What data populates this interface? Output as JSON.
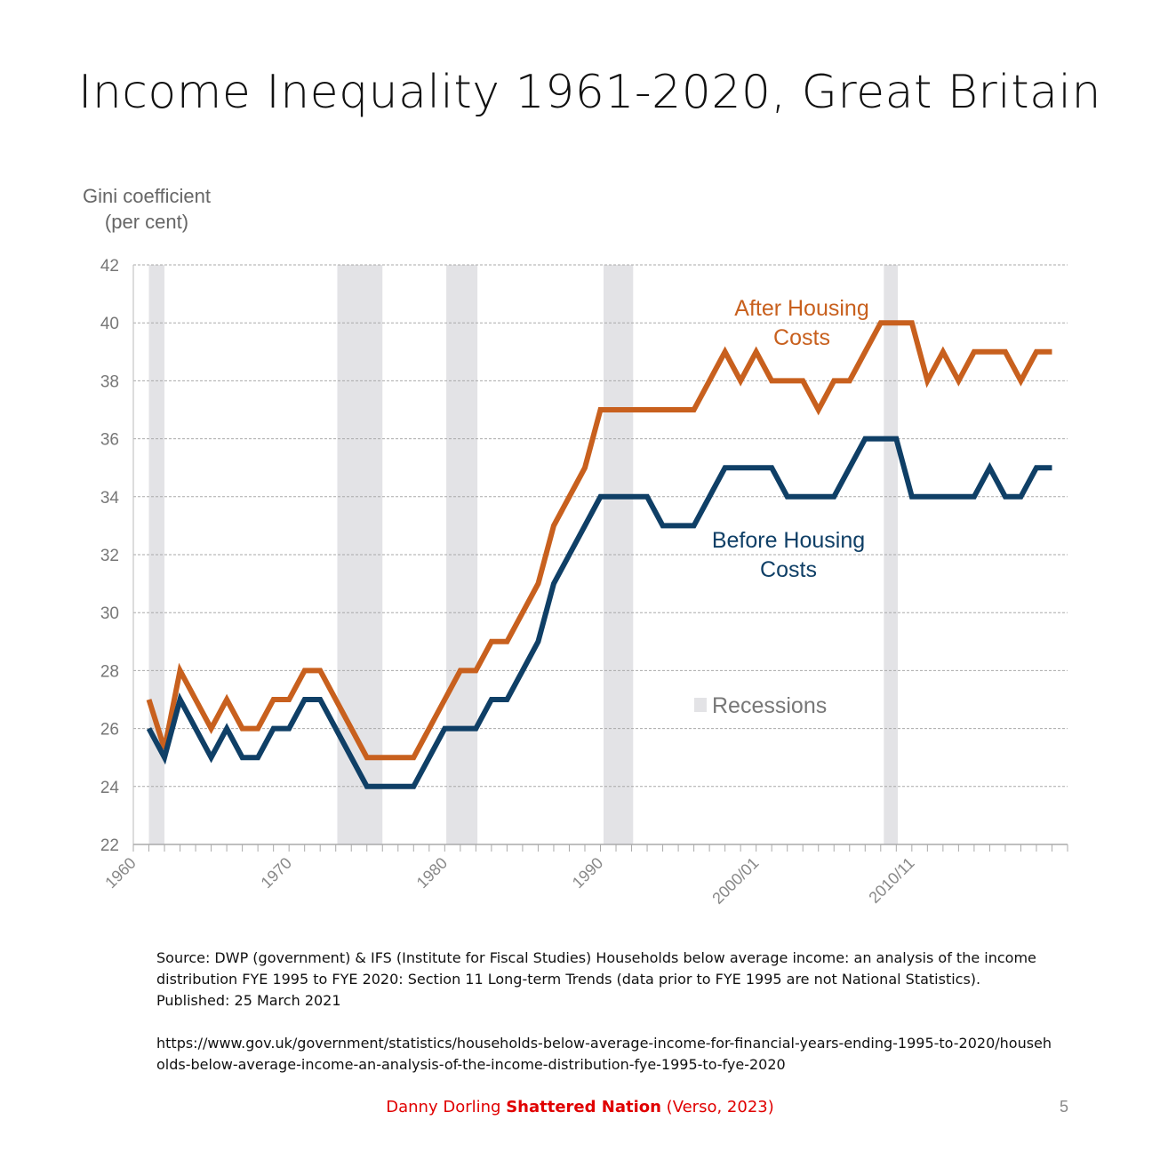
{
  "title": "Income Inequality 1961-2020, Great Britain",
  "chart_data": {
    "type": "line",
    "title": "Income Inequality 1961-2020, Great Britain",
    "ylabel": [
      "Gini coefficient",
      "(per cent)"
    ],
    "xlabel": "",
    "ylim": [
      22,
      42
    ],
    "xlim": [
      1960,
      2020
    ],
    "yticks": [
      22,
      24,
      26,
      28,
      30,
      32,
      34,
      36,
      38,
      40,
      42
    ],
    "xticks": [
      {
        "value": 1960,
        "label": "1960"
      },
      {
        "value": 1970,
        "label": "1970"
      },
      {
        "value": 1980,
        "label": "1980"
      },
      {
        "value": 1990,
        "label": "1990"
      },
      {
        "value": 2000,
        "label": "2000/01"
      },
      {
        "value": 2010,
        "label": "2010/11"
      }
    ],
    "grid": true,
    "x": [
      1961,
      1962,
      1963,
      1964,
      1965,
      1966,
      1967,
      1968,
      1969,
      1970,
      1971,
      1972,
      1973,
      1974,
      1975,
      1976,
      1977,
      1978,
      1979,
      1980,
      1981,
      1982,
      1983,
      1984,
      1985,
      1986,
      1987,
      1988,
      1989,
      1990,
      1991,
      1992,
      1993,
      1994,
      1995,
      1996,
      1997,
      1998,
      1999,
      2000,
      2001,
      2002,
      2003,
      2004,
      2005,
      2006,
      2007,
      2008,
      2009,
      2010,
      2011,
      2012,
      2013,
      2014,
      2015,
      2016,
      2017,
      2018,
      2019
    ],
    "series": [
      {
        "name": "After Housing Costs",
        "label_lines": [
          "After Housing",
          "Costs"
        ],
        "color": "#c8601e",
        "values": [
          27,
          25.3,
          28,
          27,
          26,
          27,
          26,
          26,
          27,
          27,
          28,
          28,
          27,
          26,
          25,
          25,
          25,
          25,
          26,
          27,
          28,
          28,
          29,
          29,
          30,
          31,
          33,
          34,
          35,
          37,
          37,
          37,
          37,
          37,
          37,
          37,
          38,
          39,
          38,
          39,
          38,
          38,
          38,
          37,
          38,
          38,
          39,
          40,
          40,
          40,
          38,
          39,
          38,
          39,
          39,
          39,
          38,
          39,
          39
        ]
      },
      {
        "name": "Before Housing Costs",
        "label_lines": [
          "Before Housing",
          "Costs"
        ],
        "color": "#0f3f66",
        "values": [
          26,
          25,
          27,
          26,
          25,
          26,
          25,
          25,
          26,
          26,
          27,
          27,
          26,
          25,
          24,
          24,
          24,
          24,
          25,
          26,
          26,
          26,
          27,
          27,
          28,
          29,
          31,
          32,
          33,
          34,
          34,
          34,
          34,
          33,
          33,
          33,
          34,
          35,
          35,
          35,
          35,
          34,
          34,
          34,
          34,
          35,
          36,
          36,
          36,
          34,
          34,
          34,
          34,
          34,
          35,
          34,
          34,
          35,
          35
        ]
      }
    ],
    "recessions": [
      [
        1961.0,
        1962.0
      ],
      [
        1973.1,
        1976.0
      ],
      [
        1980.1,
        1982.1
      ],
      [
        1990.2,
        1992.1
      ],
      [
        2008.2,
        2009.1
      ]
    ],
    "legend": {
      "label": "Recessions",
      "color": "#e3e3e6",
      "placement": "center-right"
    }
  },
  "source": {
    "text": "Source: DWP (government) & IFS (Institute for Fiscal Studies) Households below average income: an analysis of the income distribution FYE 1995 to FYE 2020: Section 11 Long-term Trends (data prior to FYE 1995 are not National Statistics). Published: 25 March 2021",
    "url": "https://www.gov.uk/government/statistics/households-below-average-income-for-financial-years-ending-1995-to-2020/households-below-average-income-an-analysis-of-the-income-distribution-fye-1995-to-fye-2020"
  },
  "footer": {
    "author": "Danny Dorling",
    "book": "Shattered Nation",
    "publisher": "(Verso, 2023)"
  },
  "page_number": "5"
}
